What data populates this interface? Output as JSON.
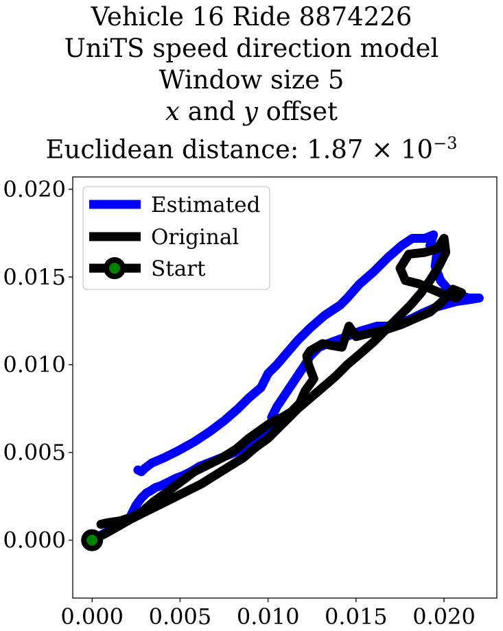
{
  "chart_data": {
    "type": "line",
    "title": {
      "line1": "Vehicle 16 Ride 8874226",
      "line2": "UniTS speed direction model",
      "line3": "Window size 5",
      "line4_var_x": "x",
      "line4_and": " and ",
      "line4_var_y": "y",
      "line4_rest": " offset",
      "line5_prefix": "Euclidean distance: 1.87",
      "line5_times": " × 10",
      "line5_exp": "−3"
    },
    "xlim": [
      -0.0011,
      0.023
    ],
    "ylim": [
      -0.0033,
      0.0207
    ],
    "xticks": [
      {
        "value": 0.0,
        "label": "0.000"
      },
      {
        "value": 0.005,
        "label": "0.005"
      },
      {
        "value": 0.01,
        "label": "0.010"
      },
      {
        "value": 0.015,
        "label": "0.015"
      },
      {
        "value": 0.02,
        "label": "0.020"
      }
    ],
    "yticks": [
      {
        "value": 0.0,
        "label": "0.000"
      },
      {
        "value": 0.005,
        "label": "0.005"
      },
      {
        "value": 0.01,
        "label": "0.010"
      },
      {
        "value": 0.015,
        "label": "0.015"
      },
      {
        "value": 0.02,
        "label": "0.020"
      }
    ],
    "legend": {
      "placement": "upper-left",
      "entries": [
        "Estimated",
        "Original",
        "Start"
      ]
    },
    "series": [
      {
        "name": "Estimated",
        "color": "#0000ff",
        "x": [
          0.0,
          0.0007,
          0.0015,
          0.0021,
          0.0025,
          0.0028,
          0.0031,
          0.0033,
          0.0036,
          0.0039,
          0.0043,
          0.0047,
          0.0052,
          0.0056,
          0.0061,
          0.0066,
          0.0071,
          0.0076,
          0.0081,
          0.0086,
          0.009,
          0.0094,
          0.0097,
          0.01,
          0.0104,
          0.0102,
          0.0105,
          0.0109,
          0.0113,
          0.0117,
          0.0121,
          0.0124,
          0.0127,
          0.0129,
          0.0134,
          0.0142,
          0.0152,
          0.0162,
          0.0172,
          0.0181,
          0.0187,
          0.0196,
          0.0207,
          0.0214,
          0.022,
          0.0214,
          0.0204,
          0.0198,
          0.0195,
          0.0196,
          0.0192,
          0.0194,
          0.0189,
          0.0182,
          0.0176,
          0.0168,
          0.016,
          0.0152,
          0.0145,
          0.0141,
          0.0132,
          0.0124,
          0.0117,
          0.0111,
          0.0105,
          0.01,
          0.0096,
          0.0089,
          0.0083,
          0.0075,
          0.0067,
          0.0058,
          0.0049,
          0.0041,
          0.0034,
          0.003,
          0.0028,
          0.0026
        ],
        "y": [
          0.0,
          0.0004,
          0.0008,
          0.0012,
          0.002,
          0.0024,
          0.0027,
          0.0028,
          0.003,
          0.0031,
          0.0033,
          0.0035,
          0.0037,
          0.0039,
          0.0042,
          0.0044,
          0.0046,
          0.0048,
          0.005,
          0.0053,
          0.0055,
          0.0056,
          0.0058,
          0.0062,
          0.0065,
          0.007,
          0.0076,
          0.0082,
          0.0088,
          0.0094,
          0.01,
          0.0105,
          0.0108,
          0.011,
          0.0112,
          0.0115,
          0.0119,
          0.0122,
          0.0122,
          0.0126,
          0.0129,
          0.0133,
          0.0136,
          0.0137,
          0.0138,
          0.0138,
          0.0141,
          0.0148,
          0.0156,
          0.0164,
          0.0168,
          0.0174,
          0.0172,
          0.0172,
          0.0168,
          0.0161,
          0.0153,
          0.0146,
          0.0138,
          0.0134,
          0.0128,
          0.0121,
          0.0114,
          0.0107,
          0.01,
          0.0095,
          0.0087,
          0.0081,
          0.0075,
          0.0068,
          0.0062,
          0.0056,
          0.0051,
          0.0047,
          0.0044,
          0.0041,
          0.0039,
          0.004
        ]
      },
      {
        "name": "Original",
        "color": "#000000",
        "x": [
          0.0,
          0.0008,
          0.0015,
          0.0022,
          0.003,
          0.0038,
          0.0046,
          0.0054,
          0.0062,
          0.007,
          0.0078,
          0.0086,
          0.0093,
          0.01,
          0.0106,
          0.0112,
          0.0117,
          0.0124,
          0.0131,
          0.0138,
          0.0145,
          0.0152,
          0.016,
          0.0167,
          0.0174,
          0.0181,
          0.0187,
          0.0192,
          0.0197,
          0.0201,
          0.02,
          0.0196,
          0.0189,
          0.018,
          0.0175,
          0.0178,
          0.0186,
          0.0193,
          0.02,
          0.0207,
          0.021,
          0.0205,
          0.0199,
          0.0192,
          0.0185,
          0.0176,
          0.0167,
          0.0158,
          0.015,
          0.0146,
          0.0142,
          0.0136,
          0.0131,
          0.0124,
          0.0122,
          0.0123,
          0.0126,
          0.0121,
          0.0118,
          0.0113,
          0.0108,
          0.0103,
          0.0096,
          0.0089,
          0.0082,
          0.0074,
          0.0066,
          0.0058,
          0.005,
          0.0042,
          0.0035,
          0.0028,
          0.0022,
          0.0016,
          0.0009,
          0.0005
        ],
        "y": [
          0.0,
          0.0004,
          0.0008,
          0.0012,
          0.0016,
          0.002,
          0.0024,
          0.0028,
          0.0032,
          0.0037,
          0.0042,
          0.0047,
          0.0053,
          0.0058,
          0.0064,
          0.007,
          0.0075,
          0.0081,
          0.0087,
          0.0093,
          0.01,
          0.0106,
          0.0113,
          0.012,
          0.0127,
          0.0134,
          0.0141,
          0.0148,
          0.0156,
          0.0164,
          0.0172,
          0.0166,
          0.0164,
          0.0163,
          0.0155,
          0.0148,
          0.0146,
          0.0143,
          0.014,
          0.0138,
          0.0141,
          0.0143,
          0.0136,
          0.013,
          0.0127,
          0.0123,
          0.012,
          0.0118,
          0.0116,
          0.0122,
          0.011,
          0.0111,
          0.0112,
          0.0108,
          0.0105,
          0.01,
          0.0092,
          0.0085,
          0.0078,
          0.0073,
          0.007,
          0.0068,
          0.0063,
          0.0058,
          0.0052,
          0.0047,
          0.0043,
          0.0039,
          0.0033,
          0.0027,
          0.0022,
          0.0016,
          0.0013,
          0.0011,
          0.001,
          0.0009
        ]
      },
      {
        "name": "Start",
        "color": "#000000",
        "marker_face": "#008000",
        "x": [
          0.0
        ],
        "y": [
          0.0
        ]
      }
    ]
  }
}
